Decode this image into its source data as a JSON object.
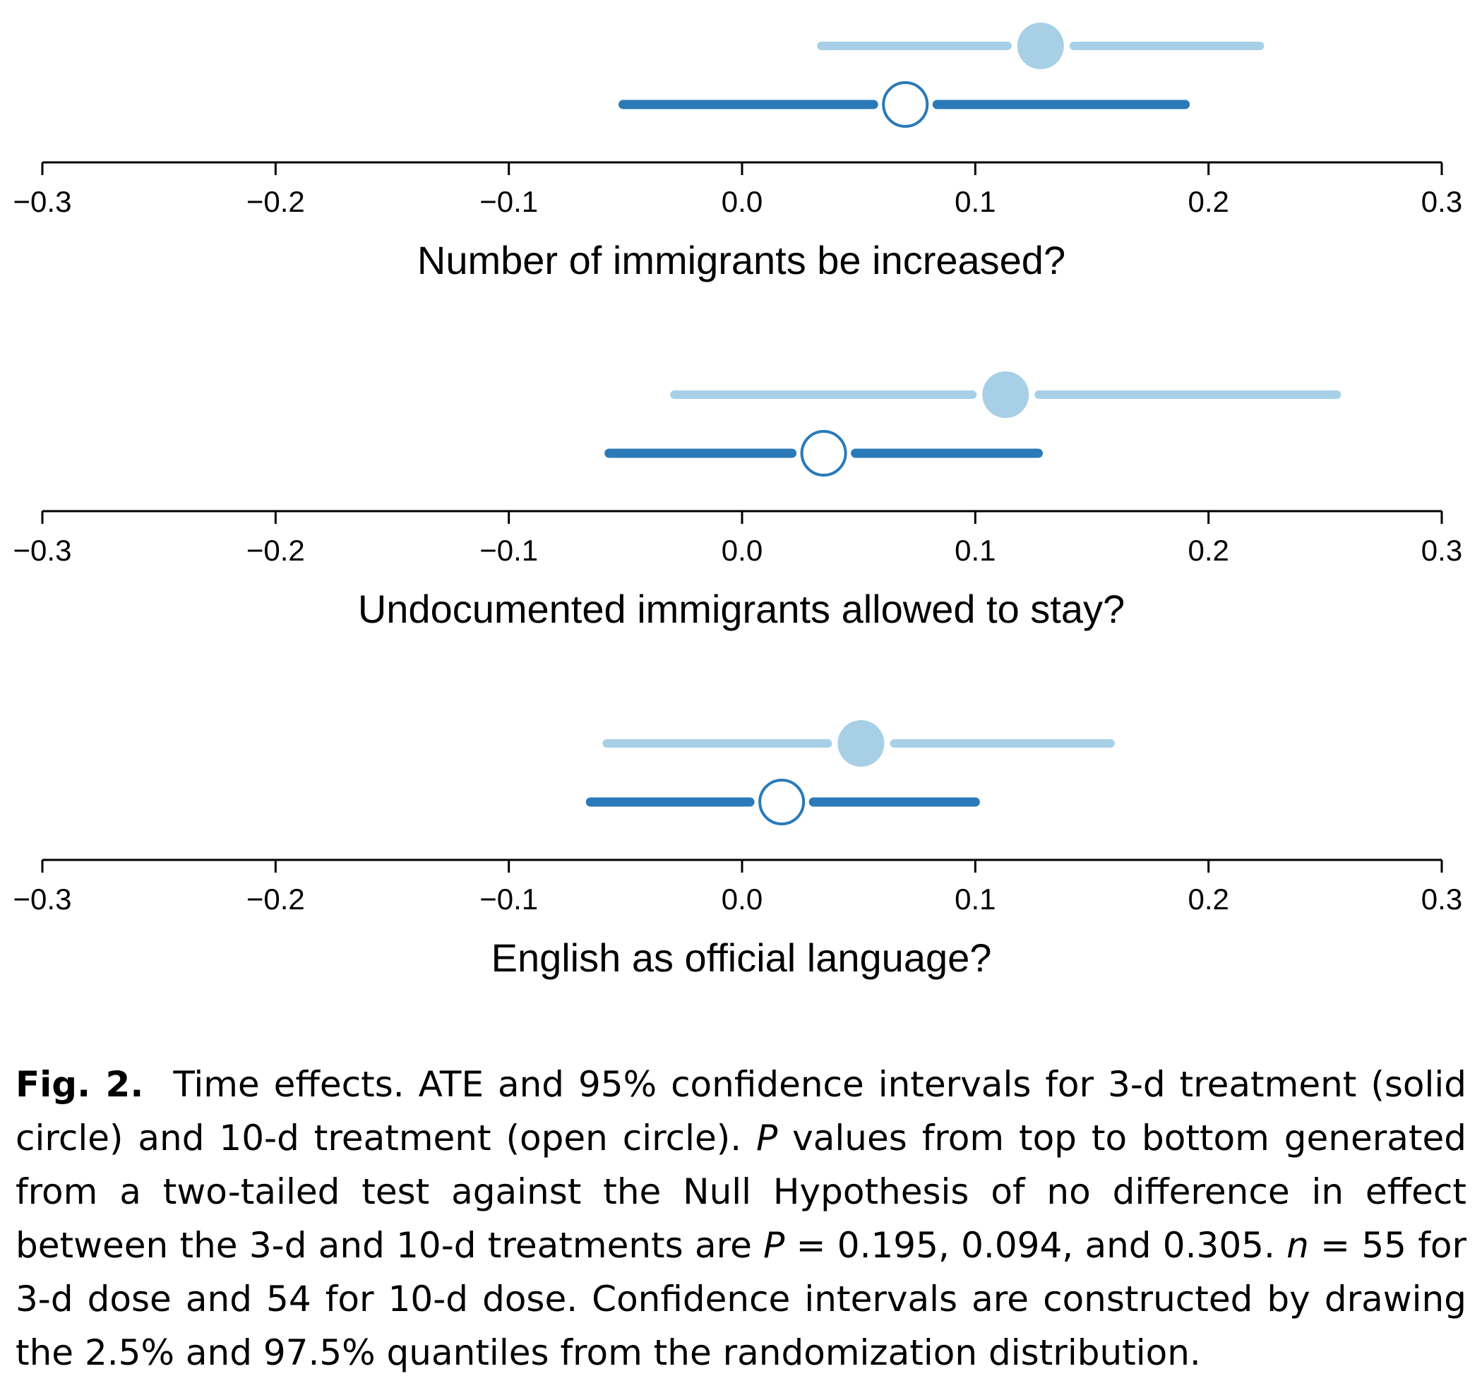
{
  "colors": {
    "three_day": "#a7d0e6",
    "ten_day": "#2a7ab9",
    "axis": "#000000"
  },
  "chart_data": [
    {
      "type": "scatter",
      "subtype": "forest-plot",
      "xlabel": "Number of immigrants be increased?",
      "xlim": [
        -0.3,
        0.3
      ],
      "xticks": [
        -0.3,
        -0.2,
        -0.1,
        0.0,
        0.1,
        0.2,
        0.3
      ],
      "xtick_labels": [
        "−0.3",
        "−0.2",
        "−0.1",
        "0.0",
        "0.1",
        "0.2",
        "0.3"
      ],
      "grid": false,
      "series": [
        {
          "marker": "solid-circle",
          "estimate": 0.128,
          "ci": [
            0.034,
            0.222
          ]
        },
        {
          "marker": "open-circle",
          "estimate": 0.07,
          "ci": [
            -0.051,
            0.19
          ]
        }
      ]
    },
    {
      "type": "scatter",
      "subtype": "forest-plot",
      "xlabel": "Undocumented immigrants allowed to stay?",
      "xlim": [
        -0.3,
        0.3
      ],
      "xticks": [
        -0.3,
        -0.2,
        -0.1,
        0.0,
        0.1,
        0.2,
        0.3
      ],
      "xtick_labels": [
        "−0.3",
        "−0.2",
        "−0.1",
        "0.0",
        "0.1",
        "0.2",
        "0.3"
      ],
      "grid": false,
      "series": [
        {
          "marker": "solid-circle",
          "estimate": 0.113,
          "ci": [
            -0.029,
            0.255
          ]
        },
        {
          "marker": "open-circle",
          "estimate": 0.035,
          "ci": [
            -0.057,
            0.127
          ]
        }
      ]
    },
    {
      "type": "scatter",
      "subtype": "forest-plot",
      "xlabel": "English as official language?",
      "xlim": [
        -0.3,
        0.3
      ],
      "xticks": [
        -0.3,
        -0.2,
        -0.1,
        0.0,
        0.1,
        0.2,
        0.3
      ],
      "xtick_labels": [
        "−0.3",
        "−0.2",
        "−0.1",
        "0.0",
        "0.1",
        "0.2",
        "0.3"
      ],
      "grid": false,
      "series": [
        {
          "marker": "solid-circle",
          "estimate": 0.051,
          "ci": [
            -0.058,
            0.158
          ]
        },
        {
          "marker": "open-circle",
          "estimate": 0.017,
          "ci": [
            -0.065,
            0.1
          ]
        }
      ]
    }
  ],
  "caption": {
    "label": "Fig. 2.",
    "part1": "Time effects. ATE and 95% confidence intervals for 3-d treatment (solid circle) and 10-d treatment (open circle). ",
    "p_italic": "P",
    "part2": " values from top to bottom generated from a two-tailed test against the Null Hypothesis of no difference in effect between the 3-d and 10-d treatments are ",
    "p_italic2": "P",
    "part3": " = 0.195, 0.094, and 0.305. ",
    "n_italic": "n",
    "part4": " = 55 for 3-d dose and 54 for 10-d dose. Confidence intervals are constructed by drawing the 2.5% and 97.5% quantiles from the randomization distribution."
  }
}
